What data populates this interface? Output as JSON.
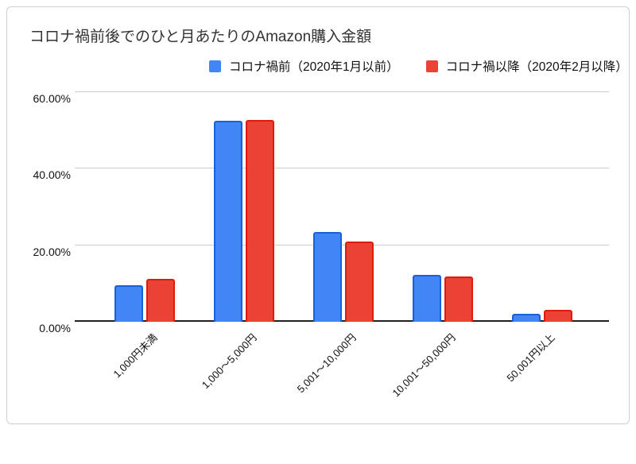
{
  "accent_colors": {
    "series1_fill": "#4285f4",
    "series1_border": "#1961d8",
    "series2_fill": "#ea4335",
    "series2_border": "#e01b0c",
    "gridline": "#cccccc",
    "axis_line": "#212121",
    "title_color": "#333333"
  },
  "chart_data": {
    "type": "bar",
    "title": "コロナ禍前後でのひと月あたりのAmazon購入金額",
    "categories": [
      "1,000円未満",
      "1,000〜5,000円",
      "5,001〜10,000円",
      "10,001〜50,000円",
      "50,001円以上"
    ],
    "series": [
      {
        "name": "コロナ禍前（2020年1月以前）",
        "color": "#4285f4",
        "border_color": "#1961d8",
        "values": [
          9.6,
          52.5,
          23.5,
          12.3,
          2.0
        ]
      },
      {
        "name": "コロナ禍以降（2020年2月以降）",
        "color": "#ea4335",
        "border_color": "#e01b0c",
        "values": [
          11.2,
          52.8,
          21.0,
          11.9,
          3.1
        ]
      }
    ],
    "ylabel": "",
    "xlabel": "",
    "ylim": [
      0,
      60
    ],
    "y_ticks": [
      {
        "value": 0,
        "label": "0.00%"
      },
      {
        "value": 20,
        "label": "20.00%"
      },
      {
        "value": 40,
        "label": "40.00%"
      },
      {
        "value": 60,
        "label": "60.00%"
      }
    ],
    "grid": true,
    "legend_position": "top"
  }
}
